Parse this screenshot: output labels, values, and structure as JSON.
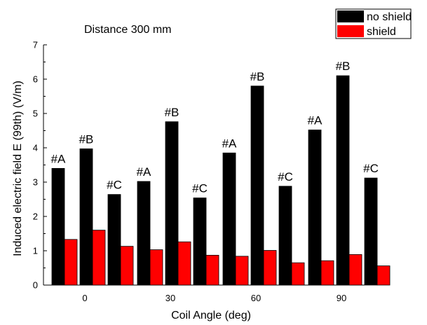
{
  "chart_data": {
    "type": "bar",
    "annotation": "Distance 300 mm",
    "xlabel": "Coil Angle (deg)",
    "ylabel": "Induced electric field E (99th) (V/m)",
    "ylim": [
      0,
      7
    ],
    "yticks": [
      "0",
      "1",
      "2",
      "3",
      "4",
      "5",
      "6",
      "7"
    ],
    "categories": [
      "0",
      "30",
      "60",
      "90"
    ],
    "groups_per_category": [
      "#A",
      "#B",
      "#C"
    ],
    "series": [
      {
        "name": "no shield",
        "color": "#000000",
        "values": [
          [
            3.4,
            3.97,
            2.64
          ],
          [
            3.02,
            4.76,
            2.54
          ],
          [
            3.85,
            5.8,
            2.88
          ],
          [
            4.52,
            6.1,
            3.12
          ]
        ]
      },
      {
        "name": "shield",
        "color": "#ff0000",
        "values": [
          [
            1.33,
            1.6,
            1.13
          ],
          [
            1.03,
            1.26,
            0.87
          ],
          [
            0.84,
            1.01,
            0.65
          ],
          [
            0.71,
            0.89,
            0.56
          ]
        ]
      }
    ],
    "legend_position": "top-right",
    "grid": false
  }
}
